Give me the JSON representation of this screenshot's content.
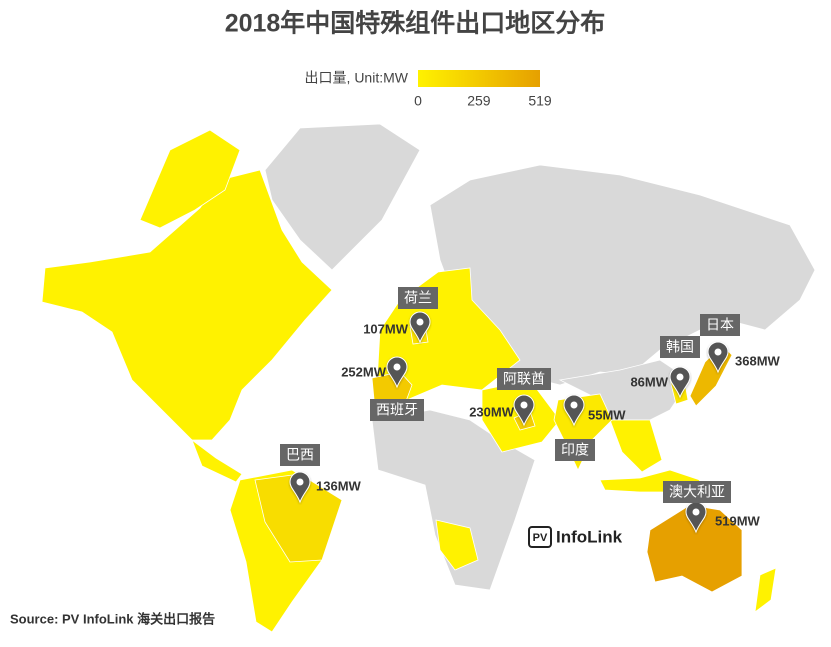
{
  "chart_data": {
    "type": "map",
    "title": "2018年中国特殊组件出口地区分布",
    "legend_label": "出口量, Unit:MW",
    "colorbar_lim": [
      0,
      519
    ],
    "colorbar_ticks": [
      0,
      259,
      519
    ],
    "color_scale": [
      "#fff200",
      "#e6a000"
    ],
    "categories": [
      "荷兰",
      "西班牙",
      "阿联酋",
      "印度",
      "巴西",
      "日本",
      "韩国",
      "澳大利亚"
    ],
    "values": [
      107,
      252,
      230,
      55,
      136,
      368,
      86,
      519
    ],
    "value_labels": [
      "107MW",
      "252MW",
      "230MW",
      "55MW",
      "136MW",
      "368MW",
      "86MW",
      "519MW"
    ],
    "source": "Source: PV InfoLink  海关出口报告",
    "logo_badge": "PV",
    "logo_text": "InfoLink"
  }
}
